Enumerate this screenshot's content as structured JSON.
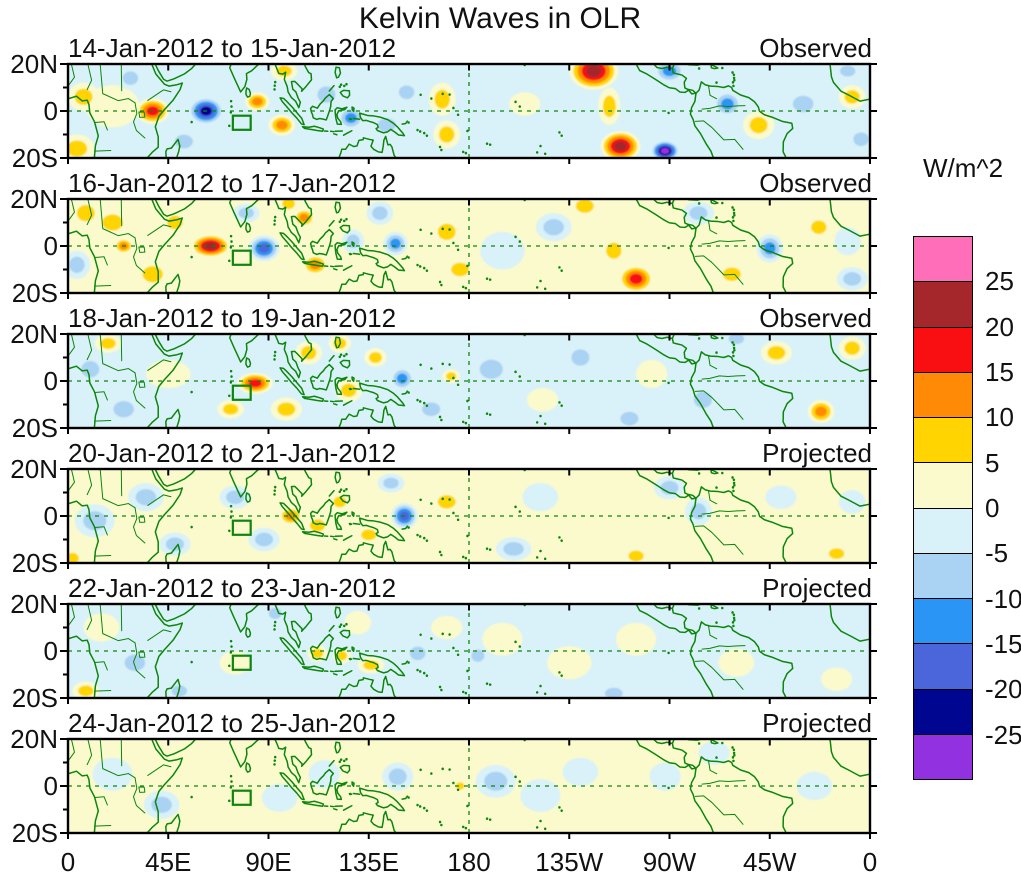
{
  "title": "Kelvin Waves in OLR",
  "colors": {
    "background": "#FFFFFF",
    "text": "#111111",
    "panel_border": "#000000",
    "coastline_green": "#0C860C",
    "reference_line_green": "#0C860C",
    "index_box_green": "#0C860C"
  },
  "chart_data": {
    "type": "heatmap",
    "subtype": "filled-contour-map-panels",
    "title": "Kelvin Waves in OLR",
    "field_units": "W/m^2",
    "lat_axis": {
      "range": [
        -20,
        20
      ],
      "ticks": [
        {
          "label": "20N",
          "lat": 20
        },
        {
          "label": "0",
          "lat": 0
        },
        {
          "label": "20S",
          "lat": -20
        }
      ],
      "minor_lats": [
        10,
        -10
      ]
    },
    "lon_axis": {
      "range": [
        0,
        360
      ],
      "ticks": [
        {
          "label": "0",
          "lon": 0
        },
        {
          "label": "45E",
          "lon": 45
        },
        {
          "label": "90E",
          "lon": 90
        },
        {
          "label": "135E",
          "lon": 135
        },
        {
          "label": "180",
          "lon": 180
        },
        {
          "label": "135W",
          "lon": 225
        },
        {
          "label": "90W",
          "lon": 270
        },
        {
          "label": "45W",
          "lon": 315
        },
        {
          "label": "0",
          "lon": 360
        }
      ]
    },
    "colorbar": {
      "units": "W/m^2",
      "tick_labels": [
        "25",
        "20",
        "15",
        "10",
        "5",
        "0",
        "-5",
        "-10",
        "-15",
        "-20",
        "-25"
      ],
      "contour_interval": 5,
      "colors_top_to_bottom": [
        "#FF6EB8",
        "#A5262B",
        "#F90E12",
        "#FF8A05",
        "#FFD400",
        "#FBFACD",
        "#D9F1F8",
        "#A9D2F3",
        "#2B95F5",
        "#4B66DB",
        "#00068F",
        "#9231E0"
      ]
    },
    "reference_lines": {
      "equator_lat": 0,
      "dateline_lon": 180,
      "style": "dashed-green"
    },
    "index_box": {
      "lon_min": 74,
      "lon_max": 82,
      "lat_min": -8,
      "lat_max": -2
    },
    "anomaly_center_columns": [
      "lon_deg_east",
      "lat_deg",
      "peak_value_wm2",
      "rx_deg",
      "ry_deg"
    ],
    "panels": [
      {
        "date_range": "14-Jan-2012 to 15-Jan-2012",
        "mode": "Observed",
        "base_color": "#D9F1F8",
        "anomaly_centers": [
          [
            7,
            6,
            8,
            7,
            6
          ],
          [
            4,
            -16,
            8,
            8,
            6
          ],
          [
            20,
            2,
            4,
            12,
            9
          ],
          [
            38,
            0,
            19,
            7.5,
            5.5
          ],
          [
            28,
            14,
            -7,
            6,
            5
          ],
          [
            62,
            0,
            -24,
            8,
            6
          ],
          [
            52,
            -13,
            -7,
            7,
            5
          ],
          [
            85,
            4,
            13,
            5.5,
            4
          ],
          [
            96,
            -6,
            14,
            6,
            4.5
          ],
          [
            97,
            17,
            5,
            6,
            4
          ],
          [
            116,
            7,
            -9,
            7,
            6
          ],
          [
            127,
            -3,
            -11,
            6,
            5
          ],
          [
            143,
            -6,
            -7,
            7,
            5
          ],
          [
            152,
            8,
            -5,
            6,
            5
          ],
          [
            168,
            5,
            7,
            6,
            7
          ],
          [
            170,
            -10,
            7,
            6,
            6
          ],
          [
            205,
            3,
            4,
            7,
            5
          ],
          [
            236,
            17,
            22,
            11,
            8
          ],
          [
            243,
            2,
            8,
            5,
            8
          ],
          [
            248,
            -15,
            23,
            9,
            6.5
          ],
          [
            270,
            17,
            -13,
            7,
            5
          ],
          [
            296,
            3,
            -13,
            6.5,
            5.5
          ],
          [
            268,
            -17,
            -26,
            6.5,
            4.5
          ],
          [
            310,
            -6,
            9,
            7,
            6
          ],
          [
            330,
            3,
            -6,
            8,
            6
          ],
          [
            352,
            6,
            7,
            6,
            5
          ],
          [
            350,
            17,
            -8,
            6,
            4
          ],
          [
            356,
            -12,
            -5,
            6,
            5
          ]
        ]
      },
      {
        "date_range": "16-Jan-2012 to 17-Jan-2012",
        "mode": "Observed",
        "base_color": "#FBFACD",
        "anomaly_centers": [
          [
            8,
            14,
            8,
            7,
            6
          ],
          [
            4,
            -8,
            -6,
            6,
            6
          ],
          [
            25,
            0,
            11,
            4.5,
            3.5
          ],
          [
            20,
            10,
            6,
            8,
            6
          ],
          [
            38,
            -12,
            7,
            8,
            6
          ],
          [
            48,
            10,
            6,
            6,
            5
          ],
          [
            64,
            0,
            21,
            9,
            5
          ],
          [
            88,
            -1,
            -17,
            7,
            5.5
          ],
          [
            80,
            14,
            -6,
            6,
            4
          ],
          [
            106,
            12,
            14,
            5,
            4
          ],
          [
            111,
            -8,
            12,
            6,
            4.5
          ],
          [
            99,
            18,
            6,
            5,
            4
          ],
          [
            128,
            2,
            -6,
            5,
            5
          ],
          [
            147,
            1,
            -11,
            5.5,
            5
          ],
          [
            140,
            14,
            -6,
            6,
            5
          ],
          [
            170,
            6,
            7,
            7,
            6
          ],
          [
            176,
            -10,
            6,
            7,
            5
          ],
          [
            195,
            -2,
            -4,
            10,
            8
          ],
          [
            218,
            8,
            -5,
            8,
            6
          ],
          [
            232,
            17,
            9,
            7,
            5
          ],
          [
            255,
            -14,
            16,
            8,
            6
          ],
          [
            245,
            -2,
            5,
            6,
            6
          ],
          [
            283,
            14,
            -7,
            7,
            5
          ],
          [
            315,
            -1,
            -13,
            6,
            6
          ],
          [
            298,
            -12,
            6,
            7,
            5
          ],
          [
            337,
            8,
            7,
            6,
            5
          ],
          [
            352,
            -14,
            -6,
            7,
            5
          ],
          [
            350,
            2,
            -4,
            6,
            6
          ]
        ]
      },
      {
        "date_range": "18-Jan-2012 to 19-Jan-2012",
        "mode": "Observed",
        "base_color": "#D9F1F8",
        "anomaly_centers": [
          [
            10,
            5,
            -6,
            7,
            6
          ],
          [
            25,
            -12,
            -6,
            8,
            6
          ],
          [
            18,
            16,
            5,
            6,
            4
          ],
          [
            45,
            3,
            4,
            10,
            6
          ],
          [
            84,
            -1,
            18,
            8,
            4.5
          ],
          [
            73,
            -12,
            6,
            6,
            4
          ],
          [
            98,
            -12,
            7,
            7,
            5
          ],
          [
            108,
            12,
            6,
            6,
            5
          ],
          [
            122,
            16,
            7,
            5,
            4
          ],
          [
            126,
            -4,
            6,
            6,
            5
          ],
          [
            138,
            10,
            5,
            5,
            4
          ],
          [
            150,
            1,
            -13,
            5.5,
            5
          ],
          [
            163,
            -12,
            -5,
            7,
            5
          ],
          [
            172,
            2,
            5,
            4,
            3
          ],
          [
            190,
            5,
            -5,
            9,
            7
          ],
          [
            213,
            -8,
            4,
            7,
            5
          ],
          [
            230,
            10,
            -7,
            7,
            6
          ],
          [
            252,
            -16,
            -6,
            7,
            5
          ],
          [
            262,
            3,
            4,
            7,
            6
          ],
          [
            285,
            -8,
            -6,
            7,
            6
          ],
          [
            318,
            12,
            9,
            7,
            5
          ],
          [
            338,
            -13,
            13,
            6,
            5
          ],
          [
            352,
            14,
            6,
            6,
            5
          ],
          [
            300,
            18,
            -6,
            6,
            4
          ],
          [
            332,
            2,
            -4,
            7,
            6
          ]
        ]
      },
      {
        "date_range": "20-Jan-2012 to 21-Jan-2012",
        "mode": "Projected",
        "base_color": "#FBFACD",
        "anomaly_centers": [
          [
            12,
            -2,
            -5,
            9,
            7
          ],
          [
            35,
            8,
            -5,
            8,
            6
          ],
          [
            48,
            -12,
            -5,
            7,
            5
          ],
          [
            2,
            -18,
            8,
            5,
            4
          ],
          [
            75,
            8,
            -6,
            7,
            5
          ],
          [
            88,
            -10,
            -5,
            7,
            5
          ],
          [
            100,
            0,
            14,
            5.5,
            4
          ],
          [
            112,
            -4,
            9,
            6,
            4.5
          ],
          [
            122,
            6,
            7,
            5,
            4
          ],
          [
            135,
            -8,
            5,
            6,
            4
          ],
          [
            151,
            0,
            -15,
            6,
            5.5
          ],
          [
            145,
            14,
            -6,
            6,
            4
          ],
          [
            170,
            6,
            5,
            7,
            5
          ],
          [
            183,
            -8,
            4,
            7,
            5
          ],
          [
            200,
            -14,
            -5,
            8,
            5
          ],
          [
            212,
            8,
            -4,
            8,
            6
          ],
          [
            237,
            -2,
            4,
            8,
            6
          ],
          [
            255,
            -17,
            7,
            6,
            4
          ],
          [
            270,
            12,
            -5,
            7,
            5
          ],
          [
            283,
            2,
            -6,
            6,
            6
          ],
          [
            305,
            -8,
            4,
            8,
            6
          ],
          [
            320,
            8,
            -4,
            7,
            5
          ],
          [
            345,
            -16,
            7,
            6,
            4
          ],
          [
            352,
            6,
            -4,
            6,
            5
          ]
        ]
      },
      {
        "date_range": "22-Jan-2012 to 23-Jan-2012",
        "mode": "Projected",
        "base_color": "#D9F1F8",
        "anomaly_centers": [
          [
            15,
            10,
            4,
            8,
            6
          ],
          [
            8,
            -17,
            6,
            6,
            4
          ],
          [
            30,
            -5,
            -5,
            8,
            6
          ],
          [
            55,
            5,
            -4,
            8,
            6
          ],
          [
            50,
            -17,
            -6,
            6,
            4
          ],
          [
            75,
            -5,
            4,
            7,
            5
          ],
          [
            93,
            16,
            -6,
            5,
            4
          ],
          [
            112,
            -1,
            9,
            4.5,
            3.5
          ],
          [
            123,
            -2,
            7,
            4,
            3.5
          ],
          [
            136,
            -6,
            7,
            6,
            3.5
          ],
          [
            130,
            12,
            4,
            6,
            5
          ],
          [
            157,
            -1,
            -7,
            6,
            5
          ],
          [
            170,
            10,
            4,
            7,
            5
          ],
          [
            184,
            -2,
            -7,
            5,
            4.5
          ],
          [
            195,
            5,
            4,
            9,
            7
          ],
          [
            225,
            -5,
            4,
            10,
            7
          ],
          [
            255,
            5,
            4,
            9,
            7
          ],
          [
            245,
            -18,
            -5,
            7,
            4
          ],
          [
            285,
            8,
            -4,
            7,
            6
          ],
          [
            300,
            -5,
            4,
            8,
            6
          ],
          [
            330,
            5,
            -4,
            8,
            6
          ],
          [
            345,
            -12,
            4,
            7,
            5
          ]
        ]
      },
      {
        "date_range": "24-Jan-2012 to 25-Jan-2012",
        "mode": "Projected",
        "base_color": "#FBFACD",
        "anomaly_centers": [
          [
            20,
            5,
            -4,
            9,
            7
          ],
          [
            42,
            -8,
            -5,
            8,
            6
          ],
          [
            8,
            -15,
            4,
            7,
            5
          ],
          [
            70,
            5,
            4,
            8,
            6
          ],
          [
            95,
            -5,
            -4,
            8,
            6
          ],
          [
            115,
            5,
            -4,
            7,
            6
          ],
          [
            135,
            -10,
            4,
            7,
            5
          ],
          [
            148,
            4,
            -5,
            7,
            6
          ],
          [
            176,
            0,
            9,
            3.5,
            2.8
          ],
          [
            168,
            -8,
            4,
            6,
            4
          ],
          [
            192,
            2,
            -5,
            9,
            7
          ],
          [
            212,
            -4,
            -4,
            9,
            7
          ],
          [
            230,
            6,
            -4,
            8,
            6
          ],
          [
            250,
            -12,
            4,
            8,
            5
          ],
          [
            268,
            4,
            -4,
            7,
            6
          ],
          [
            290,
            14,
            -4,
            7,
            5
          ],
          [
            310,
            -12,
            4,
            8,
            5
          ],
          [
            335,
            0,
            -4,
            8,
            6
          ],
          [
            352,
            10,
            4,
            6,
            5
          ]
        ]
      }
    ]
  }
}
